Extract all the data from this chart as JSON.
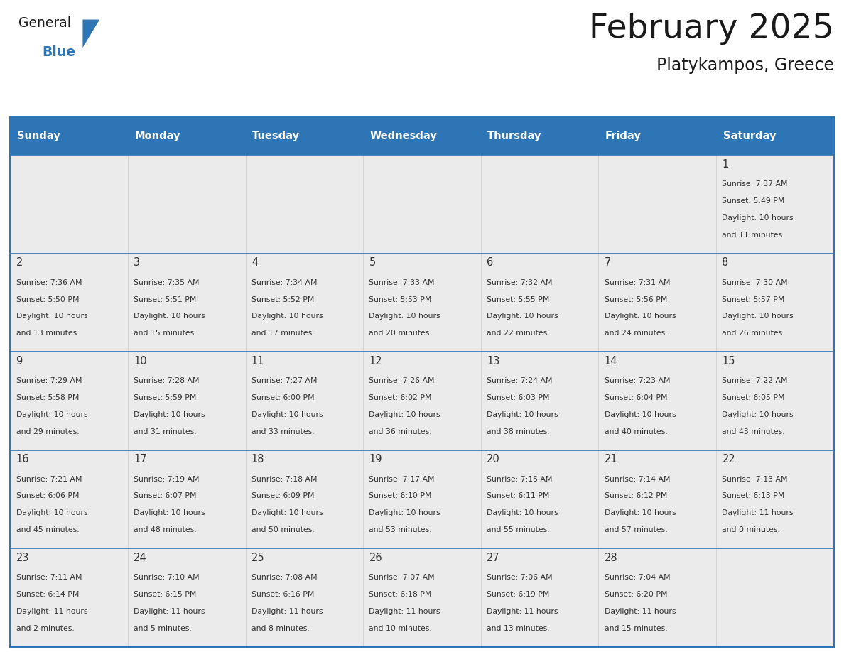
{
  "title": "February 2025",
  "subtitle": "Platykampos, Greece",
  "days_of_week": [
    "Sunday",
    "Monday",
    "Tuesday",
    "Wednesday",
    "Thursday",
    "Friday",
    "Saturday"
  ],
  "header_bg": "#2E75B6",
  "header_text_color": "#FFFFFF",
  "cell_bg_light": "#EBEBEB",
  "cell_bg_white": "#FFFFFF",
  "border_color": "#2E75B6",
  "day_number_color": "#333333",
  "info_text_color": "#333333",
  "title_color": "#1a1a1a",
  "subtitle_color": "#1a1a1a",
  "logo_general_color": "#1a1a1a",
  "logo_blue_color": "#2E75B6",
  "calendar": [
    [
      null,
      null,
      null,
      null,
      null,
      null,
      {
        "day": 1,
        "sunrise": "7:37 AM",
        "sunset": "5:49 PM",
        "daylight": "10 hours\nand 11 minutes."
      }
    ],
    [
      {
        "day": 2,
        "sunrise": "7:36 AM",
        "sunset": "5:50 PM",
        "daylight": "10 hours\nand 13 minutes."
      },
      {
        "day": 3,
        "sunrise": "7:35 AM",
        "sunset": "5:51 PM",
        "daylight": "10 hours\nand 15 minutes."
      },
      {
        "day": 4,
        "sunrise": "7:34 AM",
        "sunset": "5:52 PM",
        "daylight": "10 hours\nand 17 minutes."
      },
      {
        "day": 5,
        "sunrise": "7:33 AM",
        "sunset": "5:53 PM",
        "daylight": "10 hours\nand 20 minutes."
      },
      {
        "day": 6,
        "sunrise": "7:32 AM",
        "sunset": "5:55 PM",
        "daylight": "10 hours\nand 22 minutes."
      },
      {
        "day": 7,
        "sunrise": "7:31 AM",
        "sunset": "5:56 PM",
        "daylight": "10 hours\nand 24 minutes."
      },
      {
        "day": 8,
        "sunrise": "7:30 AM",
        "sunset": "5:57 PM",
        "daylight": "10 hours\nand 26 minutes."
      }
    ],
    [
      {
        "day": 9,
        "sunrise": "7:29 AM",
        "sunset": "5:58 PM",
        "daylight": "10 hours\nand 29 minutes."
      },
      {
        "day": 10,
        "sunrise": "7:28 AM",
        "sunset": "5:59 PM",
        "daylight": "10 hours\nand 31 minutes."
      },
      {
        "day": 11,
        "sunrise": "7:27 AM",
        "sunset": "6:00 PM",
        "daylight": "10 hours\nand 33 minutes."
      },
      {
        "day": 12,
        "sunrise": "7:26 AM",
        "sunset": "6:02 PM",
        "daylight": "10 hours\nand 36 minutes."
      },
      {
        "day": 13,
        "sunrise": "7:24 AM",
        "sunset": "6:03 PM",
        "daylight": "10 hours\nand 38 minutes."
      },
      {
        "day": 14,
        "sunrise": "7:23 AM",
        "sunset": "6:04 PM",
        "daylight": "10 hours\nand 40 minutes."
      },
      {
        "day": 15,
        "sunrise": "7:22 AM",
        "sunset": "6:05 PM",
        "daylight": "10 hours\nand 43 minutes."
      }
    ],
    [
      {
        "day": 16,
        "sunrise": "7:21 AM",
        "sunset": "6:06 PM",
        "daylight": "10 hours\nand 45 minutes."
      },
      {
        "day": 17,
        "sunrise": "7:19 AM",
        "sunset": "6:07 PM",
        "daylight": "10 hours\nand 48 minutes."
      },
      {
        "day": 18,
        "sunrise": "7:18 AM",
        "sunset": "6:09 PM",
        "daylight": "10 hours\nand 50 minutes."
      },
      {
        "day": 19,
        "sunrise": "7:17 AM",
        "sunset": "6:10 PM",
        "daylight": "10 hours\nand 53 minutes."
      },
      {
        "day": 20,
        "sunrise": "7:15 AM",
        "sunset": "6:11 PM",
        "daylight": "10 hours\nand 55 minutes."
      },
      {
        "day": 21,
        "sunrise": "7:14 AM",
        "sunset": "6:12 PM",
        "daylight": "10 hours\nand 57 minutes."
      },
      {
        "day": 22,
        "sunrise": "7:13 AM",
        "sunset": "6:13 PM",
        "daylight": "11 hours\nand 0 minutes."
      }
    ],
    [
      {
        "day": 23,
        "sunrise": "7:11 AM",
        "sunset": "6:14 PM",
        "daylight": "11 hours\nand 2 minutes."
      },
      {
        "day": 24,
        "sunrise": "7:10 AM",
        "sunset": "6:15 PM",
        "daylight": "11 hours\nand 5 minutes."
      },
      {
        "day": 25,
        "sunrise": "7:08 AM",
        "sunset": "6:16 PM",
        "daylight": "11 hours\nand 8 minutes."
      },
      {
        "day": 26,
        "sunrise": "7:07 AM",
        "sunset": "6:18 PM",
        "daylight": "11 hours\nand 10 minutes."
      },
      {
        "day": 27,
        "sunrise": "7:06 AM",
        "sunset": "6:19 PM",
        "daylight": "11 hours\nand 13 minutes."
      },
      {
        "day": 28,
        "sunrise": "7:04 AM",
        "sunset": "6:20 PM",
        "daylight": "11 hours\nand 15 minutes."
      },
      null
    ]
  ],
  "fig_width": 11.88,
  "fig_height": 9.18,
  "dpi": 100
}
